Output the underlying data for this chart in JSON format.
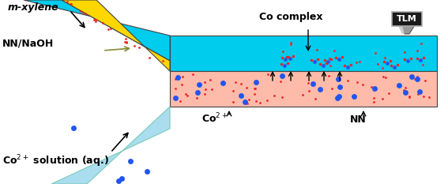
{
  "bg_color": "#ffffff",
  "cyan_color": "#00CCEE",
  "yellow_color": "#FFD700",
  "pink_color": "#FFBBAA",
  "light_blue_color": "#AADDEE",
  "red_dot_color": "#EE2222",
  "blue_dot_color": "#2255EE",
  "dark_outline": "#444444",
  "label_m_xylene": "m-xylene",
  "label_nn_naoh": "NN/NaOH",
  "label_co2plus_sol": "Co$^{2+}$ solution (aq.)",
  "label_co2plus": "Co$^{2+}$",
  "label_nn": "NN",
  "label_co_complex": "Co complex",
  "label_tlm": "TLM",
  "figw": 5.67,
  "figh": 2.33,
  "dpi": 100
}
